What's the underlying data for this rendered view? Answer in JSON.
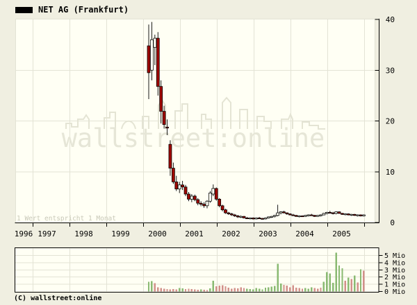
{
  "header": {
    "title": "NET AG (Frankfurt)"
  },
  "watermark": {
    "text": "wallstreet:online"
  },
  "annotations": {
    "scale_note": "1 Wert entspricht 1 Monat"
  },
  "footer": {
    "copyright": "(C) wallstreet:online"
  },
  "colors": {
    "page_bg": "#f0efe1",
    "plot_bg": "#fffff4",
    "grid": "#e3e3d5",
    "axis": "#000000",
    "candle_down": "#a00800",
    "candle_up": "#fffff4",
    "volume_up": "#8aba72",
    "volume_down": "#d2908a",
    "watermark": "#e6e6d7",
    "note": "#c9c9b9",
    "legend_swatch": "#000000"
  },
  "chart_data": [
    {
      "type": "candlestick",
      "title": "NET AG (Frankfurt)",
      "xlabel": "",
      "ylabel": "",
      "ylim": [
        0,
        40
      ],
      "grid": true,
      "y_tick_labels": [
        "0",
        "10",
        "20",
        "30",
        "40"
      ],
      "y_tick_values": [
        0,
        10,
        20,
        30,
        40
      ],
      "x_tick_labels": [
        "1996",
        "1997",
        "1998",
        "1999",
        "2000",
        "2001",
        "2002",
        "2003",
        "2004",
        "2005"
      ],
      "note": "1 Wert entspricht 1 Monat",
      "months": [
        "2000-02",
        "2000-03",
        "2000-04",
        "2000-05",
        "2000-06",
        "2000-07",
        "2000-08",
        "2000-09",
        "2000-10",
        "2000-11",
        "2000-12",
        "2001-01",
        "2001-02",
        "2001-03",
        "2001-04",
        "2001-05",
        "2001-06",
        "2001-07",
        "2001-08",
        "2001-09",
        "2001-10",
        "2001-11",
        "2001-12",
        "2002-01",
        "2002-02",
        "2002-03",
        "2002-04",
        "2002-05",
        "2002-06",
        "2002-07",
        "2002-08",
        "2002-09",
        "2002-10",
        "2002-11",
        "2002-12",
        "2003-01",
        "2003-02",
        "2003-03",
        "2003-04",
        "2003-05",
        "2003-06",
        "2003-07",
        "2003-08",
        "2003-09",
        "2003-10",
        "2003-11",
        "2003-12",
        "2004-01",
        "2004-02",
        "2004-03",
        "2004-04",
        "2004-05",
        "2004-06",
        "2004-07",
        "2004-08",
        "2004-09",
        "2004-10",
        "2004-11",
        "2004-12",
        "2005-01",
        "2005-02",
        "2005-03",
        "2005-04",
        "2005-05",
        "2005-06",
        "2005-07",
        "2005-08",
        "2005-09",
        "2005-10",
        "2005-11",
        "2005-12"
      ],
      "ohlc": [
        [
          34.8,
          39.0,
          24.3,
          29.5
        ],
        [
          30.0,
          39.5,
          28.0,
          36.0
        ],
        [
          34.5,
          37.0,
          31.0,
          36.3
        ],
        [
          36.3,
          37.5,
          25.0,
          26.8
        ],
        [
          26.8,
          28.0,
          19.5,
          21.9
        ],
        [
          21.9,
          23.0,
          18.5,
          19.3
        ],
        [
          18.8,
          20.3,
          17.2,
          18.6
        ],
        [
          15.4,
          16.2,
          9.2,
          10.7
        ],
        [
          10.7,
          11.8,
          7.6,
          8.0
        ],
        [
          8.0,
          9.2,
          6.2,
          6.6
        ],
        [
          6.6,
          8.0,
          5.8,
          7.4
        ],
        [
          7.4,
          8.2,
          6.4,
          7.0
        ],
        [
          7.0,
          7.4,
          5.2,
          5.6
        ],
        [
          5.6,
          6.0,
          4.2,
          4.6
        ],
        [
          4.6,
          5.6,
          4.0,
          5.2
        ],
        [
          5.2,
          5.5,
          4.2,
          4.5
        ],
        [
          4.5,
          4.8,
          3.4,
          3.8
        ],
        [
          3.8,
          4.2,
          3.2,
          3.6
        ],
        [
          3.6,
          4.0,
          2.9,
          3.3
        ],
        [
          3.3,
          4.4,
          2.8,
          4.2
        ],
        [
          4.2,
          6.2,
          3.9,
          5.8
        ],
        [
          5.6,
          7.5,
          5.2,
          6.7
        ],
        [
          6.7,
          6.9,
          4.3,
          4.6
        ],
        [
          4.6,
          4.8,
          3.0,
          3.3
        ],
        [
          3.3,
          3.5,
          2.2,
          2.5
        ],
        [
          2.5,
          2.7,
          1.7,
          1.9
        ],
        [
          1.9,
          2.1,
          1.5,
          1.7
        ],
        [
          1.7,
          1.9,
          1.3,
          1.5
        ],
        [
          1.5,
          1.7,
          1.1,
          1.3
        ],
        [
          1.3,
          1.5,
          0.9,
          1.1
        ],
        [
          1.1,
          1.4,
          0.9,
          1.2
        ],
        [
          1.2,
          1.3,
          0.8,
          0.9
        ],
        [
          0.9,
          1.1,
          0.7,
          0.8
        ],
        [
          0.8,
          1.0,
          0.6,
          0.9
        ],
        [
          0.9,
          1.0,
          0.6,
          0.7
        ],
        [
          0.7,
          1.0,
          0.6,
          0.9
        ],
        [
          0.9,
          1.1,
          0.7,
          0.8
        ],
        [
          0.8,
          0.9,
          0.6,
          0.7
        ],
        [
          0.7,
          1.0,
          0.6,
          0.9
        ],
        [
          0.9,
          1.2,
          0.8,
          1.1
        ],
        [
          1.1,
          1.3,
          0.9,
          1.2
        ],
        [
          1.2,
          1.5,
          1.0,
          1.4
        ],
        [
          1.4,
          3.5,
          1.2,
          1.9
        ],
        [
          1.9,
          2.2,
          1.6,
          2.1
        ],
        [
          2.1,
          2.3,
          1.8,
          1.9
        ],
        [
          1.9,
          2.0,
          1.5,
          1.7
        ],
        [
          1.7,
          1.8,
          1.4,
          1.5
        ],
        [
          1.5,
          1.7,
          1.3,
          1.4
        ],
        [
          1.4,
          1.5,
          1.1,
          1.2
        ],
        [
          1.2,
          1.4,
          1.0,
          1.3
        ],
        [
          1.3,
          1.4,
          1.1,
          1.2
        ],
        [
          1.2,
          1.5,
          1.1,
          1.4
        ],
        [
          1.4,
          1.6,
          1.2,
          1.5
        ],
        [
          1.5,
          1.7,
          1.3,
          1.4
        ],
        [
          1.4,
          1.5,
          1.1,
          1.2
        ],
        [
          1.2,
          1.5,
          1.1,
          1.4
        ],
        [
          1.4,
          1.6,
          1.2,
          1.5
        ],
        [
          1.5,
          1.9,
          1.4,
          1.8
        ],
        [
          1.8,
          2.1,
          1.6,
          2.0
        ],
        [
          2.0,
          2.3,
          1.8,
          1.9
        ],
        [
          1.9,
          2.1,
          1.6,
          1.8
        ],
        [
          1.8,
          2.2,
          1.6,
          2.1
        ],
        [
          2.1,
          2.2,
          1.7,
          1.8
        ],
        [
          1.8,
          1.9,
          1.5,
          1.6
        ],
        [
          1.6,
          1.8,
          1.4,
          1.7
        ],
        [
          1.7,
          1.8,
          1.4,
          1.5
        ],
        [
          1.5,
          1.7,
          1.3,
          1.6
        ],
        [
          1.6,
          1.7,
          1.3,
          1.4
        ],
        [
          1.4,
          1.6,
          1.2,
          1.5
        ],
        [
          1.5,
          1.6,
          1.2,
          1.3
        ],
        [
          1.3,
          1.6,
          1.2,
          1.5
        ]
      ]
    },
    {
      "type": "bar",
      "title": "Volume",
      "ylabel": "Mio",
      "ylim": [
        0,
        6
      ],
      "grid": true,
      "y_tick_labels": [
        "0 Mio",
        "1 Mio",
        "2 Mio",
        "3 Mio",
        "4 Mio",
        "5 Mio"
      ],
      "y_tick_values": [
        0,
        1,
        2,
        3,
        4,
        5
      ],
      "values": [
        1.35,
        1.45,
        1.15,
        0.6,
        0.5,
        0.4,
        0.35,
        0.3,
        0.35,
        0.3,
        0.5,
        0.45,
        0.35,
        0.4,
        0.35,
        0.3,
        0.25,
        0.3,
        0.25,
        0.2,
        0.45,
        1.5,
        0.7,
        0.8,
        0.85,
        0.7,
        0.55,
        0.4,
        0.5,
        0.45,
        0.6,
        0.5,
        0.4,
        0.35,
        0.3,
        0.5,
        0.4,
        0.3,
        0.55,
        0.6,
        0.65,
        0.75,
        3.85,
        1.1,
        0.9,
        0.8,
        0.6,
        0.85,
        0.55,
        0.5,
        0.4,
        0.5,
        0.4,
        0.6,
        0.5,
        0.4,
        0.55,
        1.35,
        2.7,
        2.5,
        1.2,
        5.4,
        3.6,
        3.2,
        1.5,
        1.9,
        1.75,
        2.2,
        1.25,
        3.1,
        2.9
      ],
      "directions": [
        "u",
        "u",
        "d",
        "d",
        "d",
        "d",
        "d",
        "d",
        "d",
        "d",
        "u",
        "u",
        "d",
        "d",
        "d",
        "d",
        "d",
        "u",
        "d",
        "d",
        "u",
        "u",
        "d",
        "d",
        "d",
        "d",
        "d",
        "d",
        "d",
        "d",
        "d",
        "d",
        "u",
        "u",
        "u",
        "u",
        "u",
        "u",
        "u",
        "u",
        "u",
        "u",
        "u",
        "u",
        "d",
        "d",
        "d",
        "d",
        "d",
        "d",
        "d",
        "u",
        "u",
        "u",
        "d",
        "d",
        "d",
        "u",
        "u",
        "u",
        "u",
        "u",
        "u",
        "u",
        "d",
        "u",
        "d",
        "u",
        "d",
        "u",
        "d"
      ]
    }
  ]
}
